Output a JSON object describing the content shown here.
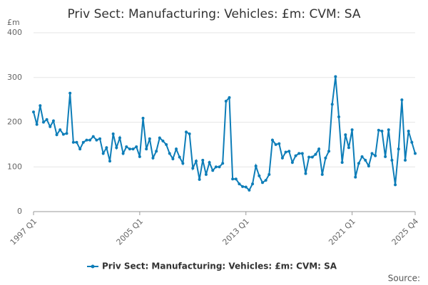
{
  "chart_data": {
    "type": "line",
    "title": "Priv Sect: Manufacturing: Vehicles: £m: CVM: SA",
    "y_label": "£m",
    "source": "Source:",
    "categories": [
      "1997 Q1",
      null,
      null,
      null,
      null,
      null,
      null,
      null,
      null,
      null,
      null,
      null,
      null,
      null,
      null,
      null,
      null,
      null,
      null,
      null,
      null,
      null,
      null,
      null,
      null,
      null,
      null,
      null,
      null,
      null,
      null,
      null,
      "2005 Q1",
      null,
      null,
      null,
      null,
      null,
      null,
      null,
      null,
      null,
      null,
      null,
      null,
      null,
      null,
      null,
      null,
      null,
      null,
      null,
      null,
      null,
      null,
      null,
      null,
      null,
      null,
      null,
      null,
      null,
      null,
      null,
      "2013 Q1",
      null,
      null,
      null,
      null,
      null,
      null,
      null,
      null,
      null,
      null,
      null,
      null,
      null,
      null,
      null,
      null,
      null,
      null,
      null,
      null,
      null,
      null,
      null,
      null,
      null,
      null,
      null,
      null,
      null,
      null,
      null,
      "2021 Q1",
      null,
      null,
      null,
      null,
      null,
      null,
      null,
      null,
      null,
      null,
      null,
      null,
      null,
      null,
      null,
      null,
      null,
      null,
      "2025 Q4"
    ],
    "series": [
      {
        "name": "Priv Sect: Manufacturing: Vehicles: £m: CVM: SA",
        "color": "#0d7db8",
        "values": [
          223,
          195,
          237,
          200,
          206,
          190,
          203,
          172,
          183,
          173,
          175,
          265,
          155,
          155,
          140,
          155,
          160,
          160,
          168,
          160,
          163,
          130,
          143,
          113,
          174,
          143,
          165,
          130,
          145,
          140,
          140,
          145,
          123,
          209,
          140,
          163,
          120,
          135,
          165,
          158,
          150,
          130,
          118,
          140,
          122,
          108,
          178,
          174,
          97,
          113,
          72,
          115,
          83,
          110,
          92,
          100,
          100,
          108,
          247,
          255,
          73,
          73,
          62,
          56,
          55,
          48,
          62,
          102,
          80,
          65,
          70,
          83,
          160,
          150,
          152,
          120,
          133,
          135,
          110,
          125,
          130,
          130,
          85,
          122,
          122,
          128,
          140,
          83,
          120,
          135,
          240,
          302,
          212,
          110,
          172,
          143,
          183,
          77,
          108,
          123,
          115,
          102,
          130,
          125,
          182,
          180,
          123,
          183,
          115,
          60,
          140,
          250,
          115,
          180,
          155,
          130
        ]
      }
    ],
    "ylim": [
      0,
      400
    ],
    "yticks": [
      0,
      100,
      200,
      300,
      400
    ],
    "grid": true,
    "legend": "bottom"
  }
}
